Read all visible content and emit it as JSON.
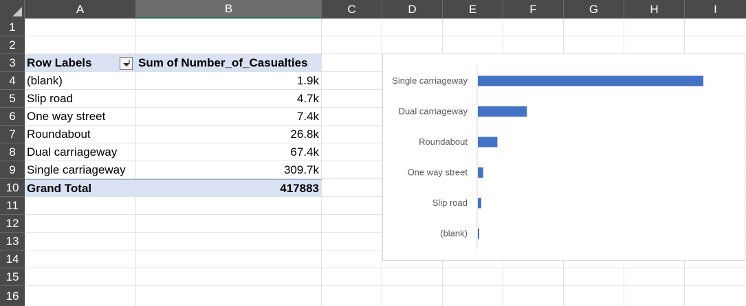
{
  "columns": [
    "A",
    "B",
    "C",
    "D",
    "E",
    "F",
    "G",
    "H",
    "I"
  ],
  "rows": [
    "1",
    "2",
    "3",
    "4",
    "5",
    "6",
    "7",
    "8",
    "9",
    "10",
    "11",
    "12",
    "13",
    "14",
    "15",
    "16"
  ],
  "pivot": {
    "header_row_labels": "Row Labels",
    "header_sum": "Sum of Number_of_Casualties",
    "items": [
      {
        "label": "(blank)",
        "value": "1.9k"
      },
      {
        "label": "Slip road",
        "value": "4.7k"
      },
      {
        "label": "One way street",
        "value": "7.4k"
      },
      {
        "label": "Roundabout",
        "value": "26.8k"
      },
      {
        "label": "Dual carriageway",
        "value": "67.4k"
      },
      {
        "label": "Single carriageway",
        "value": "309.7k"
      }
    ],
    "total_label": "Grand Total",
    "total_value": "417883"
  },
  "chart_data": {
    "type": "bar",
    "orientation": "horizontal",
    "categories": [
      "Single carriageway",
      "Dual carriageway",
      "Roundabout",
      "One way street",
      "Slip road",
      "(blank)"
    ],
    "values": [
      309700,
      67400,
      26800,
      7400,
      4700,
      1900
    ],
    "title": "",
    "xlabel": "",
    "ylabel": "",
    "xlim": [
      0,
      309700
    ],
    "grid": false,
    "legend": "none",
    "bar_color": "#4472c4"
  },
  "colors": {
    "header_bg": "#4a4a4a",
    "pivot_header_bg": "#dae1f3",
    "bar": "#4472c4"
  }
}
